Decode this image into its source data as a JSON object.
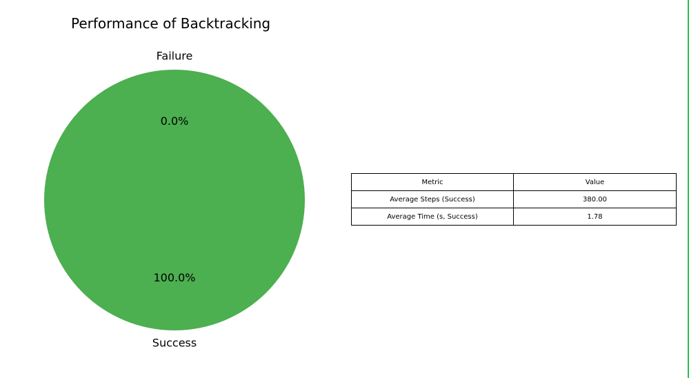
{
  "chart_data": [
    {
      "type": "pie",
      "title": "Performance of Backtracking",
      "categories": [
        "Success",
        "Failure"
      ],
      "values": [
        100.0,
        0.0
      ],
      "autopct_labels": [
        "100.0%",
        "0.0%"
      ],
      "colors": {
        "Success": "#4caf50",
        "Failure": "#f44336"
      }
    },
    {
      "type": "table",
      "columns": [
        "Metric",
        "Value"
      ],
      "rows": [
        [
          "Average Steps (Success)",
          "380.00"
        ],
        [
          "Average Time (s, Success)",
          "1.78"
        ]
      ]
    }
  ]
}
